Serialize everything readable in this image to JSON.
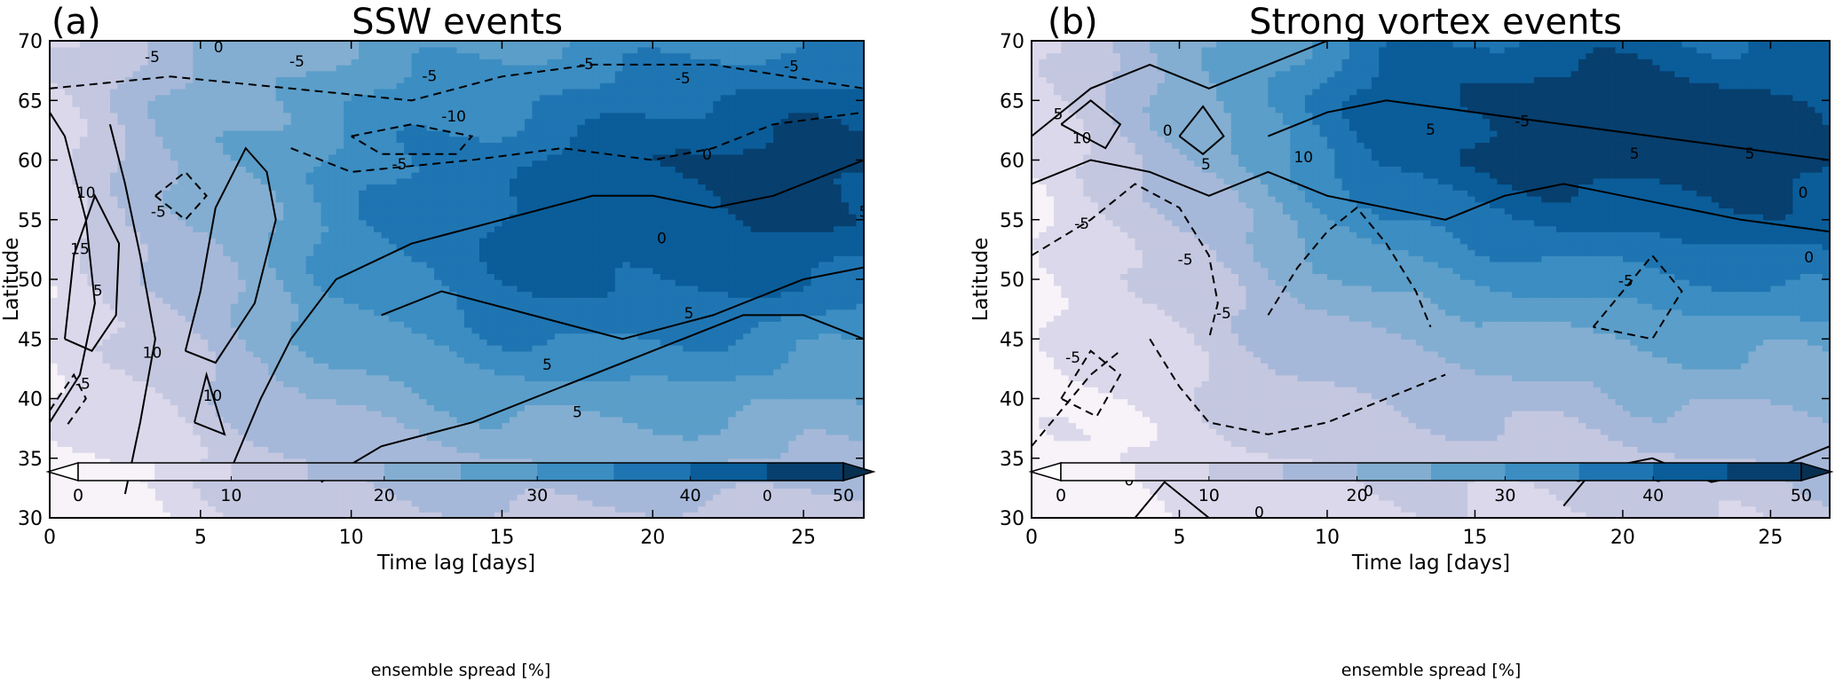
{
  "chart_data": [
    {
      "type": "heatmap",
      "panel_label": "(a)",
      "title": "SSW events",
      "xlabel": "Time lag [days]",
      "ylabel": "Latitude",
      "xlim": [
        0,
        27
      ],
      "ylim": [
        30,
        70
      ],
      "x_ticks": [
        0,
        5,
        10,
        15,
        20,
        25
      ],
      "y_ticks": [
        30,
        35,
        40,
        45,
        50,
        55,
        60,
        65,
        70
      ],
      "fill_variable": "ensemble spread [%]",
      "fill_grid": {
        "x": [
          0,
          3,
          6,
          9,
          12,
          15,
          18,
          21,
          24,
          27
        ],
        "y": [
          30,
          35,
          40,
          45,
          50,
          55,
          60,
          65,
          70
        ],
        "z": [
          [
            2,
            5,
            9,
            12,
            13,
            14,
            14,
            13,
            12,
            10
          ],
          [
            3,
            6,
            12,
            16,
            18,
            20,
            21,
            21,
            20,
            18
          ],
          [
            4,
            9,
            16,
            21,
            24,
            26,
            28,
            28,
            26,
            24
          ],
          [
            5,
            11,
            19,
            25,
            30,
            34,
            36,
            35,
            33,
            30
          ],
          [
            6,
            13,
            21,
            29,
            36,
            40,
            41,
            42,
            41,
            39
          ],
          [
            7,
            16,
            22,
            30,
            38,
            41,
            43,
            45,
            46,
            45
          ],
          [
            8,
            17,
            25,
            30,
            35,
            38,
            43,
            46,
            47,
            46
          ],
          [
            9,
            18,
            24,
            28,
            32,
            34,
            36,
            40,
            42,
            42
          ],
          [
            10,
            15,
            20,
            24,
            27,
            29,
            31,
            33,
            34,
            33
          ]
        ]
      },
      "contour_labels": [
        "-5",
        "0",
        "-5",
        "-5",
        "-10",
        "-5",
        "-5",
        "-5",
        "-5",
        "10",
        "15",
        "5",
        "0",
        "10",
        "10",
        "-5",
        "0",
        "5",
        "5",
        "0",
        "5",
        "0",
        "-5",
        "5"
      ]
    },
    {
      "type": "heatmap",
      "panel_label": "(b)",
      "title": "Strong vortex events",
      "xlabel": "Time lag [days]",
      "ylabel": "Latitude",
      "xlim": [
        0,
        27
      ],
      "ylim": [
        30,
        70
      ],
      "x_ticks": [
        0,
        5,
        10,
        15,
        20,
        25
      ],
      "y_ticks": [
        30,
        35,
        40,
        45,
        50,
        55,
        60,
        65,
        70
      ],
      "fill_variable": "ensemble spread [%]",
      "fill_grid": {
        "x": [
          0,
          3,
          6,
          9,
          12,
          15,
          18,
          21,
          24,
          27
        ],
        "y": [
          30,
          35,
          40,
          45,
          50,
          55,
          60,
          65,
          70
        ],
        "z": [
          [
            2,
            4,
            6,
            7,
            8,
            9,
            10,
            11,
            11,
            12
          ],
          [
            2,
            5,
            8,
            10,
            11,
            12,
            13,
            14,
            15,
            16
          ],
          [
            3,
            6,
            10,
            13,
            15,
            17,
            18,
            20,
            21,
            21
          ],
          [
            3,
            7,
            12,
            17,
            20,
            22,
            24,
            26,
            27,
            27
          ],
          [
            4,
            8,
            14,
            21,
            27,
            30,
            32,
            34,
            35,
            37
          ],
          [
            5,
            10,
            17,
            26,
            34,
            38,
            41,
            42,
            43,
            44
          ],
          [
            6,
            13,
            22,
            31,
            41,
            46,
            48,
            48,
            47,
            46
          ],
          [
            8,
            16,
            25,
            34,
            43,
            47,
            48,
            48,
            46,
            44
          ],
          [
            9,
            17,
            23,
            30,
            38,
            41,
            42,
            42,
            40,
            39
          ]
        ]
      },
      "contour_labels": [
        "5",
        "10",
        "-5",
        "0",
        "5",
        "10",
        "-5",
        "-5",
        "-5",
        "-5",
        "0",
        "0",
        "0",
        "0",
        "0",
        "5",
        "-5",
        "5",
        "5",
        "0",
        "0"
      ]
    }
  ],
  "colorbar": {
    "label": "ensemble spread [%]",
    "levels": [
      0,
      5,
      10,
      15,
      20,
      25,
      30,
      35,
      40,
      45,
      50
    ],
    "tick_labels": [
      "0",
      "10",
      "20",
      "30",
      "40",
      "50"
    ],
    "colors": [
      "#f7f3f9",
      "#dad8ea",
      "#c4c7e0",
      "#a6b8d9",
      "#83aed1",
      "#5b9ec9",
      "#3b8dc2",
      "#1f75b2",
      "#0a5d99",
      "#073f6e"
    ],
    "extend": "both"
  }
}
